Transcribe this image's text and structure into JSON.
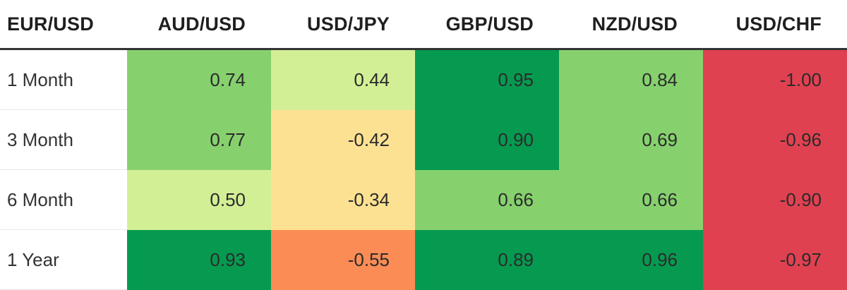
{
  "chart_data": {
    "type": "table",
    "corner_header": "EUR/USD",
    "columns": [
      "AUD/USD",
      "USD/JPY",
      "GBP/USD",
      "NZD/USD",
      "USD/CHF"
    ],
    "rows": [
      {
        "label": "1 Month",
        "values": [
          "0.74",
          "0.44",
          "0.95",
          "0.84",
          "-1.00"
        ]
      },
      {
        "label": "3 Month",
        "values": [
          "0.77",
          "-0.42",
          "0.90",
          "0.69",
          "-0.96"
        ]
      },
      {
        "label": "6 Month",
        "values": [
          "0.50",
          "-0.34",
          "0.66",
          "0.66",
          "-0.90"
        ]
      },
      {
        "label": "1 Year",
        "values": [
          "0.93",
          "-0.55",
          "0.89",
          "0.96",
          "-0.97"
        ]
      }
    ]
  },
  "colors": {
    "strong_positive": "#069a50",
    "medium_positive": "#86d16e",
    "weak_positive": "#d3ef95",
    "weak_negative": "#fde192",
    "medium_negative": "#fb8c56",
    "strong_negative": "#e04151"
  }
}
